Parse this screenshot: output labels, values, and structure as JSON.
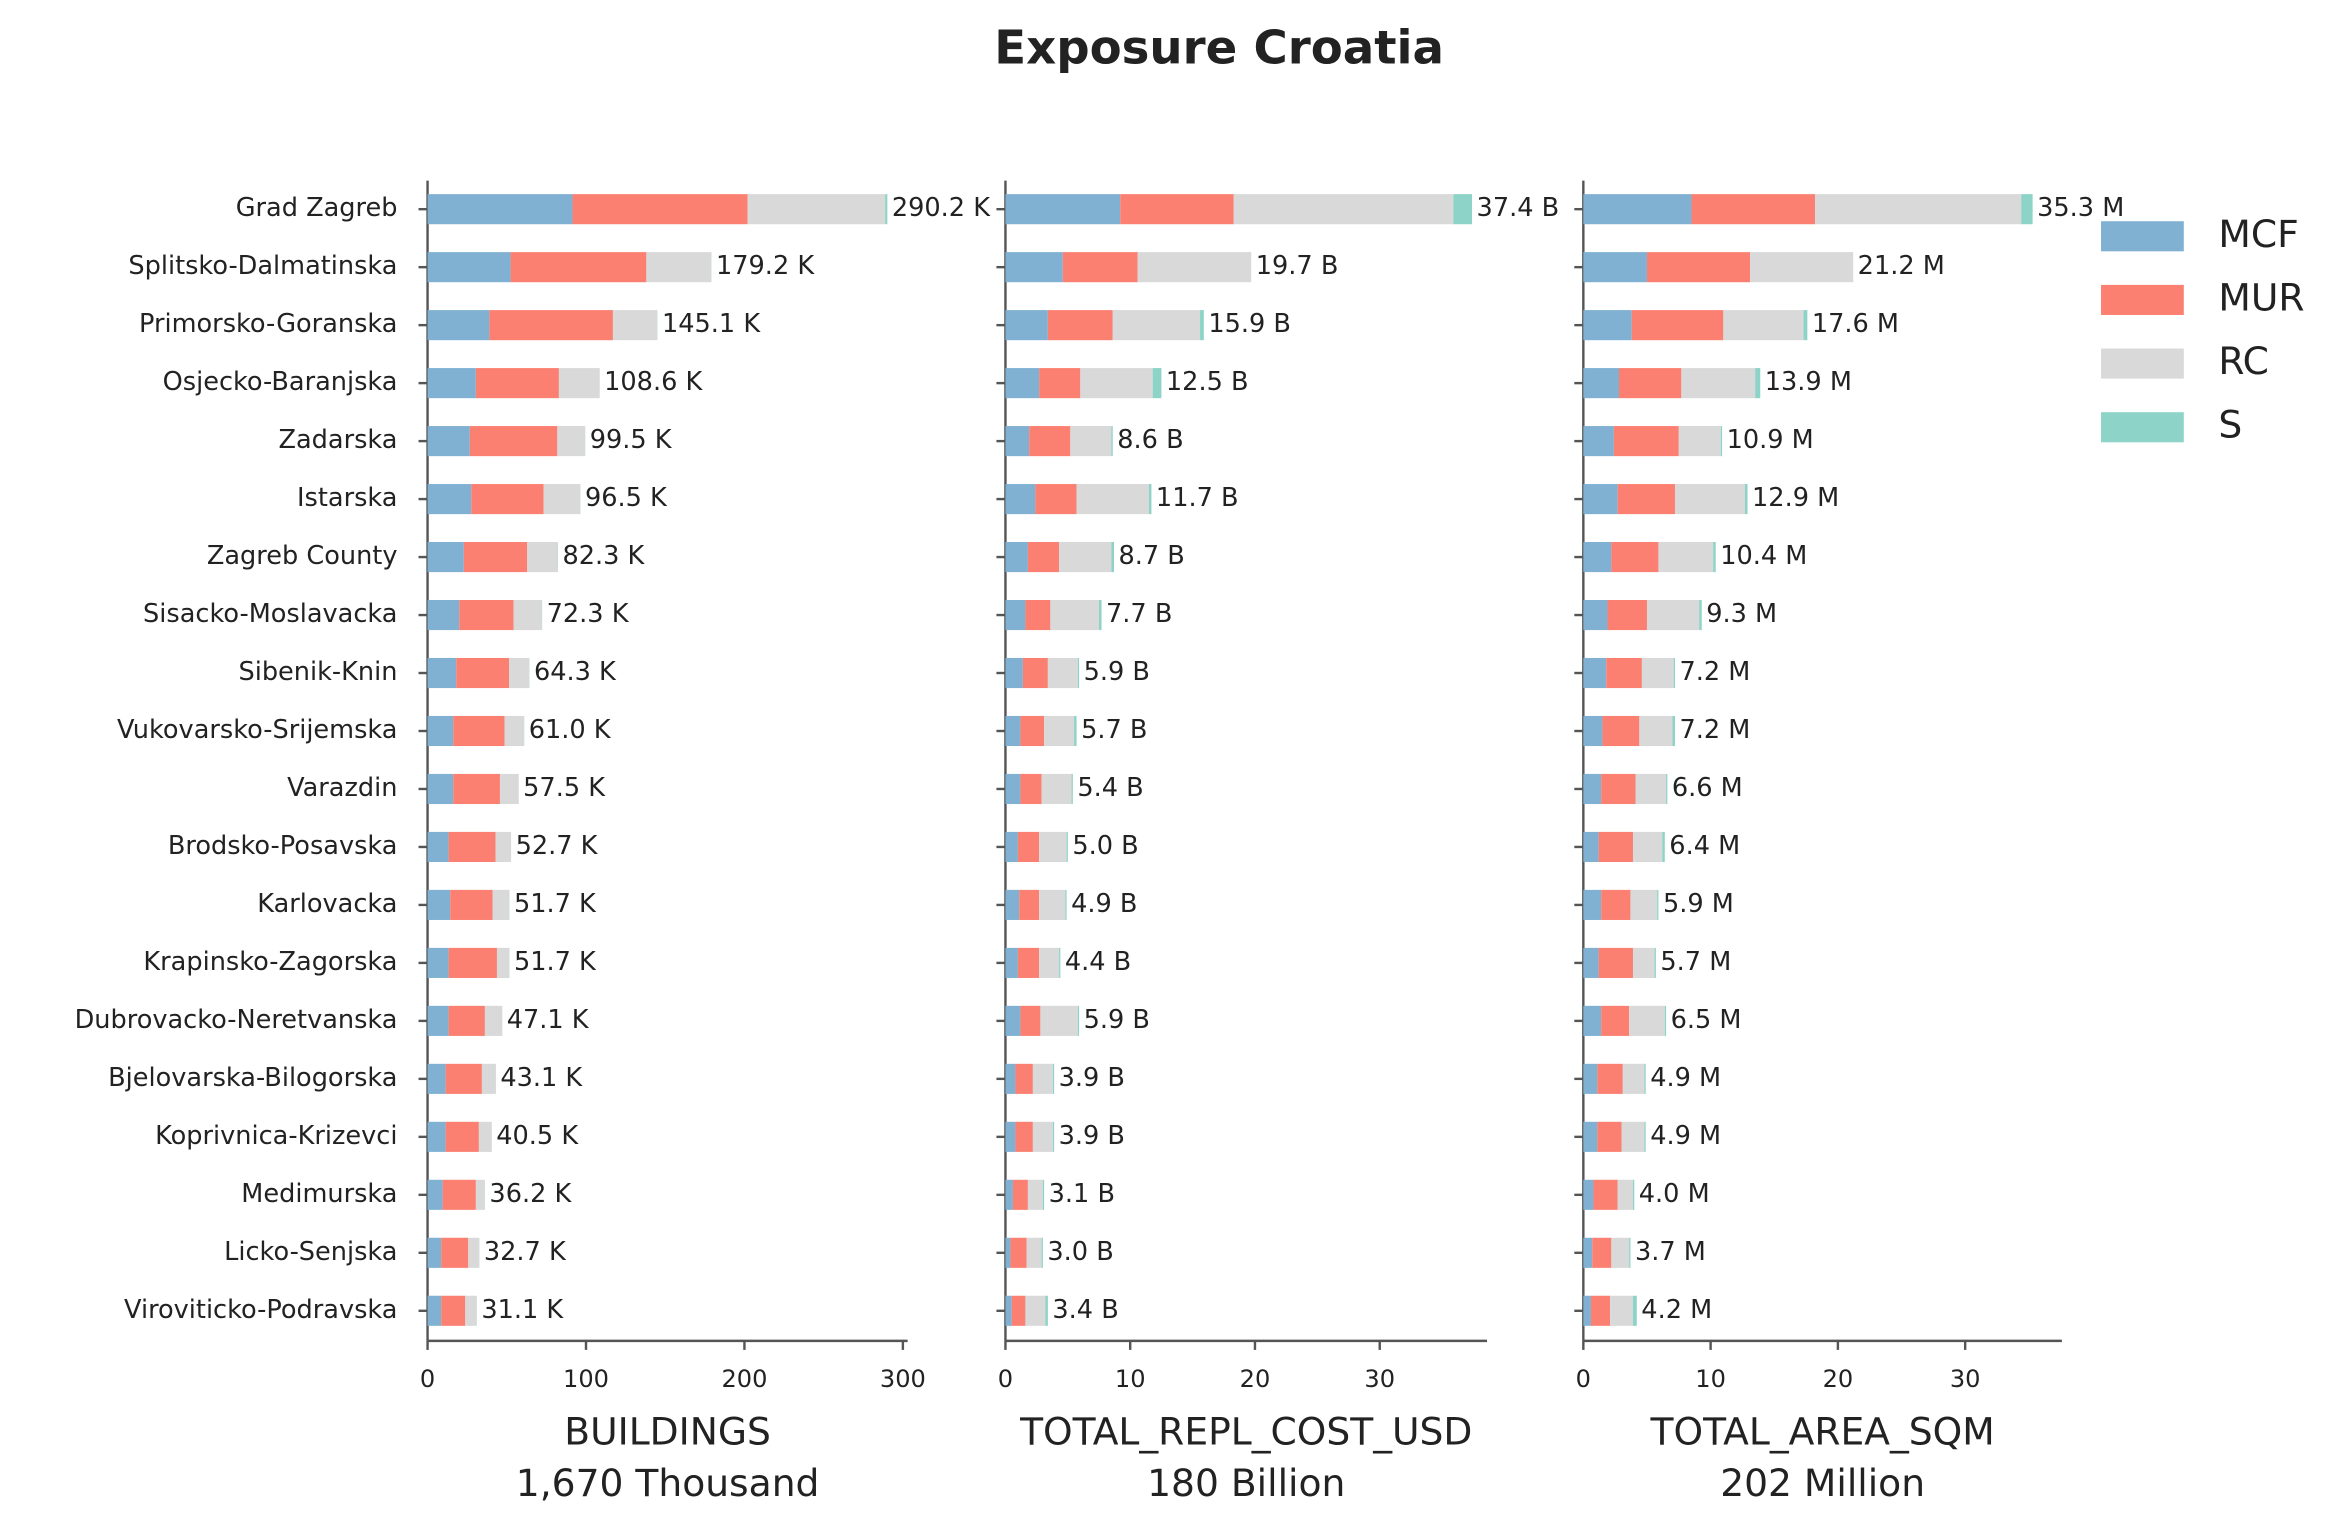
{
  "title": "Exposure Croatia",
  "chart_data": [
    {
      "type": "bar",
      "xlabel": "BUILDINGS",
      "xlabel_note": "1,670 Thousand",
      "categories": [
        "Grad Zagreb",
        "Splitsko-Dalmatinska",
        "Primorsko-Goranska",
        "Osjecko-Baranjska",
        "Zadarska",
        "Istarska",
        "Zagreb County",
        "Sisacko-Moslavacka",
        "Sibenik-Knin",
        "Vukovarsko-Srijemska",
        "Varazdin",
        "Brodsko-Posavska",
        "Karlovacka",
        "Krapinsko-Zagorska",
        "Dubrovacko-Neretvanska",
        "Bjelovarska-Bilogorska",
        "Koprivnica-Krizevci",
        "Medimurska",
        "Licko-Senjska",
        "Viroviticko-Podravska"
      ],
      "series": [
        {
          "name": "MCF",
          "color": "#80b1d3",
          "values": [
            91.5,
            52.4,
            39,
            30.5,
            26.7,
            27.6,
            22.9,
            20,
            18.1,
            16.2,
            16.2,
            13.3,
            14.3,
            13.3,
            13.3,
            11.4,
            11.4,
            9.5,
            8.6,
            8.6
          ]
        },
        {
          "name": "MUR",
          "color": "#fb8072",
          "values": [
            110.5,
            85.7,
            78,
            52.4,
            55.2,
            45.7,
            40,
            34.3,
            33.3,
            32.4,
            29.5,
            29.6,
            26.7,
            30.5,
            22.9,
            22.9,
            21,
            21,
            17.1,
            15.2
          ]
        },
        {
          "name": "RC",
          "color": "#d9d9d9",
          "values": [
            86.8,
            41.0,
            28,
            25.6,
            17.5,
            23.1,
            19.3,
            17.9,
            12.8,
            12.3,
            11.7,
            9.7,
            10.6,
            7.8,
            10.8,
            8.7,
            8,
            5.6,
            6.9,
            7.2
          ]
        },
        {
          "name": "S",
          "color": "#8dd3c7",
          "values": [
            1.4,
            0.1,
            0.1,
            0.1,
            0.1,
            0.1,
            0.1,
            0.1,
            0.1,
            0.1,
            0.1,
            0.1,
            0.1,
            0.1,
            0.1,
            0.1,
            0.1,
            0.1,
            0.1,
            0.1
          ]
        }
      ],
      "totals": [
        290.2,
        179.2,
        145.1,
        108.6,
        99.5,
        96.5,
        82.3,
        72.3,
        64.3,
        61.0,
        57.5,
        52.7,
        51.7,
        51.7,
        47.1,
        43.1,
        40.5,
        36.2,
        32.7,
        31.1
      ],
      "value_labels": [
        "290.2 K",
        "179.2 K",
        "145.1 K",
        "108.6 K",
        "99.5 K",
        "96.5 K",
        "82.3 K",
        "72.3 K",
        "64.3 K",
        "61.0 K",
        "57.5 K",
        "52.7 K",
        "51.7 K",
        "51.7 K",
        "47.1 K",
        "43.1 K",
        "40.5 K",
        "36.2 K",
        "32.7 K",
        "31.1 K"
      ],
      "xlim": [
        0,
        303
      ],
      "xticks": [
        0,
        100,
        200,
        300
      ]
    },
    {
      "type": "bar",
      "xlabel": "TOTAL_REPL_COST_USD",
      "xlabel_note": "180 Billion",
      "series": [
        {
          "values": [
            9.2,
            4.6,
            3.4,
            2.7,
            1.9,
            2.4,
            1.8,
            1.6,
            1.4,
            1.2,
            1.2,
            1.0,
            1.1,
            1.0,
            1.2,
            0.8,
            0.8,
            0.6,
            0.4,
            0.5
          ]
        },
        {
          "values": [
            9.1,
            6.0,
            5.2,
            3.3,
            3.3,
            3.3,
            2.5,
            2.0,
            2.0,
            1.9,
            1.7,
            1.7,
            1.6,
            1.7,
            1.6,
            1.4,
            1.4,
            1.2,
            1.3,
            1.1
          ]
        },
        {
          "values": [
            17.6,
            9.1,
            7.0,
            5.8,
            3.3,
            5.8,
            4.2,
            3.9,
            2.4,
            2.4,
            2.4,
            2.2,
            2.1,
            1.6,
            3.0,
            1.6,
            1.6,
            1.2,
            1.2,
            1.6
          ]
        },
        {
          "values": [
            1.5,
            0.0,
            0.3,
            0.7,
            0.1,
            0.2,
            0.2,
            0.2,
            0.1,
            0.2,
            0.1,
            0.1,
            0.1,
            0.1,
            0.1,
            0.1,
            0.1,
            0.1,
            0.1,
            0.2
          ]
        }
      ],
      "totals": [
        37.4,
        19.7,
        15.9,
        12.5,
        8.6,
        11.7,
        8.7,
        7.7,
        5.9,
        5.7,
        5.4,
        5.0,
        4.9,
        4.4,
        5.9,
        3.9,
        3.9,
        3.1,
        3.0,
        3.4
      ],
      "value_labels": [
        "37.4 B",
        "19.7 B",
        "15.9 B",
        "12.5 B",
        "8.6 B",
        "11.7 B",
        "8.7 B",
        "7.7 B",
        "5.9 B",
        "5.7 B",
        "5.4 B",
        "5.0 B",
        "4.9 B",
        "4.4 B",
        "5.9 B",
        "3.9 B",
        "3.9 B",
        "3.1 B",
        "3.0 B",
        "3.4 B"
      ],
      "xlim": [
        0,
        38.6
      ],
      "xticks": [
        0,
        10,
        20,
        30
      ]
    },
    {
      "type": "bar",
      "xlabel": "TOTAL_AREA_SQM",
      "xlabel_note": "202 Million",
      "series": [
        {
          "values": [
            8.5,
            5.0,
            3.8,
            2.8,
            2.4,
            2.7,
            2.2,
            1.9,
            1.8,
            1.5,
            1.4,
            1.2,
            1.4,
            1.2,
            1.4,
            1.1,
            1.1,
            0.8,
            0.7,
            0.6
          ]
        },
        {
          "values": [
            9.7,
            8.1,
            7.2,
            4.9,
            5.1,
            4.5,
            3.7,
            3.1,
            2.8,
            2.9,
            2.7,
            2.7,
            2.3,
            2.7,
            2.2,
            2.0,
            1.9,
            1.9,
            1.5,
            1.5
          ]
        },
        {
          "values": [
            16.2,
            8.1,
            6.3,
            5.8,
            3.3,
            5.5,
            4.3,
            4.1,
            2.5,
            2.6,
            2.4,
            2.3,
            2.1,
            1.7,
            2.8,
            1.7,
            1.8,
            1.2,
            1.4,
            1.8
          ]
        },
        {
          "values": [
            0.9,
            0.0,
            0.3,
            0.4,
            0.1,
            0.2,
            0.2,
            0.2,
            0.1,
            0.2,
            0.1,
            0.2,
            0.1,
            0.1,
            0.1,
            0.1,
            0.1,
            0.1,
            0.1,
            0.3
          ]
        }
      ],
      "totals": [
        35.3,
        21.2,
        17.6,
        13.9,
        10.9,
        12.9,
        10.4,
        9.3,
        7.2,
        7.2,
        6.6,
        6.4,
        5.9,
        5.7,
        6.5,
        4.9,
        4.9,
        4.0,
        3.7,
        4.2
      ],
      "value_labels": [
        "35.3 M",
        "21.2 M",
        "17.6 M",
        "13.9 M",
        "10.9 M",
        "12.9 M",
        "10.4 M",
        "9.3 M",
        "7.2 M",
        "7.2 M",
        "6.6 M",
        "6.4 M",
        "5.9 M",
        "5.7 M",
        "6.5 M",
        "4.9 M",
        "4.9 M",
        "4.0 M",
        "3.7 M",
        "4.2 M"
      ],
      "xlim": [
        0,
        37.6
      ],
      "xticks": [
        0,
        10,
        20,
        30
      ]
    }
  ]
}
